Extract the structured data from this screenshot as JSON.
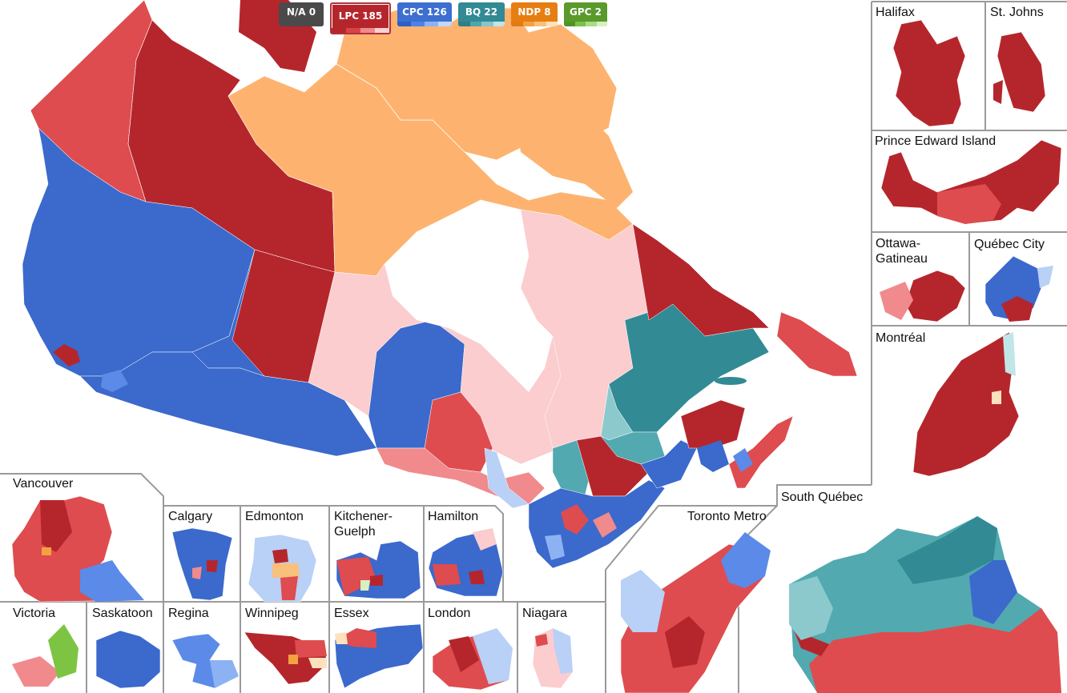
{
  "legend": [
    {
      "label": "N/A 0",
      "color": "#4a4a4a",
      "shades": [
        "#4a4a4a",
        "#4a4a4a",
        "#4a4a4a",
        "#4a4a4a"
      ],
      "active": false
    },
    {
      "label": "LPC 185",
      "color": "#b5262c",
      "shades": [
        "#b5262c",
        "#d94449",
        "#f08a8c",
        "#fbd2d3"
      ],
      "active": true
    },
    {
      "label": "CPC 126",
      "color": "#3d6fd1",
      "shades": [
        "#2f5fc4",
        "#4d82e6",
        "#8db2f3",
        "#c4d7fa"
      ],
      "active": false
    },
    {
      "label": "BQ 22",
      "color": "#318a94",
      "shades": [
        "#2d7f88",
        "#4fa7ae",
        "#86c6cb",
        "#c1e6e8"
      ],
      "active": false
    },
    {
      "label": "NDP 8",
      "color": "#e67e12",
      "shades": [
        "#e07b12",
        "#f3a23f",
        "#f8c07b",
        "#fde1bd"
      ],
      "active": false
    },
    {
      "label": "GPC 2",
      "color": "#5a9a2b",
      "shades": [
        "#4f9427",
        "#7cc24a",
        "#a9dc84",
        "#d6f0c2"
      ],
      "active": false
    }
  ],
  "insets": {
    "halifax": "Halifax",
    "st_johns": "St. Johns",
    "pei": "Prince Edward Island",
    "ottawa": "Ottawa-\nGatineau",
    "quebec_city": "Québec City",
    "montreal": "Montréal",
    "south_quebec": "South Québec",
    "toronto": "Toronto Metro",
    "vancouver": "Vancouver",
    "calgary": "Calgary",
    "edmonton": "Edmonton",
    "kitchener": "Kitchener-\nGuelph",
    "hamilton": "Hamilton",
    "victoria": "Victoria",
    "saskatoon": "Saskatoon",
    "regina": "Regina",
    "winnipeg": "Winnipeg",
    "essex": "Essex",
    "london": "London",
    "niagara": "Niagara"
  },
  "colors": {
    "lpc_dark": "#b5262c",
    "lpc_mid": "#de4c4f",
    "lpc_light": "#f08a8c",
    "lpc_pale": "#fbcdce",
    "cpc_dark": "#3b69cc",
    "cpc_mid": "#5b8ae8",
    "cpc_light": "#b9d0f7",
    "bq_dark": "#318a94",
    "bq_mid": "#52a9b0",
    "bq_light": "#8cc9cd",
    "ndp_pale": "#fdb36f",
    "gpc": "#7dc443"
  }
}
